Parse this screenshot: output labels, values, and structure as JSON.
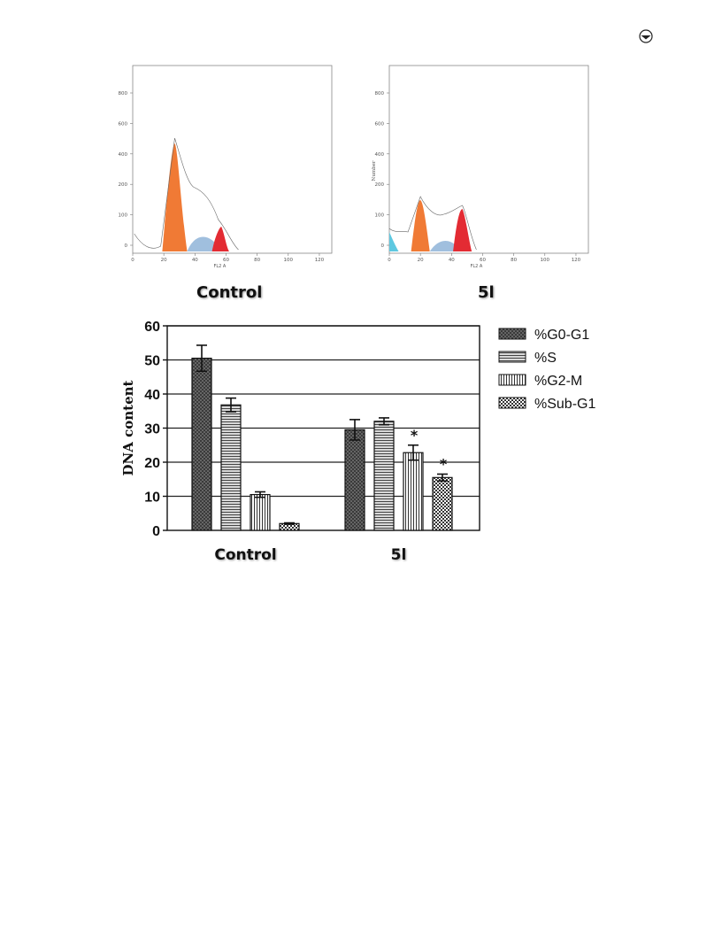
{
  "header": {
    "icon": "circled-target-icon"
  },
  "histograms": [
    {
      "sample_label": "Control",
      "x_label": "FL2 A",
      "y_label": "",
      "x_ticks": [
        "0",
        "20",
        "40",
        "60",
        "80",
        "100",
        "120"
      ],
      "y_ticks": [
        "0",
        "100",
        "200",
        "400",
        "600",
        "800"
      ],
      "colors": {
        "g0g1": "#f07a35",
        "s": "#8fb4d8",
        "g2m": "#e32b33",
        "subg1": "#5ec8e0"
      }
    },
    {
      "sample_label": "5l",
      "x_label": "FL2 A",
      "y_label": "Number",
      "x_ticks": [
        "0",
        "20",
        "40",
        "60",
        "80",
        "100",
        "120"
      ],
      "y_ticks": [
        "0",
        "100",
        "200",
        "400",
        "600",
        "800"
      ],
      "colors": {
        "g0g1": "#f07a35",
        "s": "#8fb4d8",
        "g2m": "#e32b33",
        "subg1": "#5ec8e0"
      }
    }
  ],
  "chart_data": {
    "type": "bar",
    "title": "",
    "xlabel": "",
    "ylabel": "DNA content",
    "ylim": [
      0,
      60
    ],
    "yticks": [
      "0",
      "10",
      "20",
      "30",
      "40",
      "50",
      "60"
    ],
    "categories": [
      "Control",
      "5l"
    ],
    "grid": true,
    "legend_position": "right",
    "series": [
      {
        "name": "%G0-G1",
        "pattern": "dots",
        "values": [
          50.5,
          29.5
        ],
        "errors": [
          3.8,
          3.0
        ],
        "marks": [
          "",
          ""
        ]
      },
      {
        "name": "%S",
        "pattern": "hlines",
        "values": [
          36.8,
          32.0
        ],
        "errors": [
          2.0,
          1.0
        ],
        "marks": [
          "",
          ""
        ]
      },
      {
        "name": "%G2-M",
        "pattern": "vlines",
        "values": [
          10.5,
          22.8
        ],
        "errors": [
          0.8,
          2.2
        ],
        "marks": [
          "",
          "*"
        ]
      },
      {
        "name": "%Sub-G1",
        "pattern": "checker",
        "values": [
          2.0,
          15.5
        ],
        "errors": [
          0.2,
          1.0
        ],
        "marks": [
          "",
          "*"
        ]
      }
    ]
  }
}
